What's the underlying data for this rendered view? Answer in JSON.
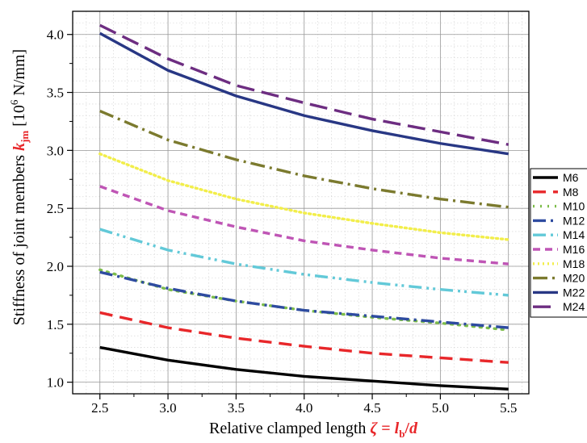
{
  "chart_data": {
    "type": "line",
    "xlabel": {
      "main": "Relative clamped length ",
      "symbol": "ζ",
      "equals": " = ",
      "l": "l",
      "l_sub": "b",
      "slash": "/",
      "d": "d"
    },
    "ylabel": {
      "main": "Stiffness of joint members ",
      "k": "k",
      "k_sub": "jm",
      "unit_open": " [10",
      "unit_exp": "6",
      "unit_close": " N/mm]"
    },
    "xlim": [
      2.3,
      5.65
    ],
    "ylim": [
      0.9,
      4.2
    ],
    "xticks": [
      "2.5",
      "3.0",
      "3.5",
      "4.0",
      "4.5",
      "5.0",
      "5.5"
    ],
    "yticks": [
      "1.0",
      "1.5",
      "2.0",
      "2.5",
      "3.0",
      "3.5",
      "4.0"
    ],
    "grid": true,
    "legend_position": "right",
    "x": [
      2.5,
      3.0,
      3.5,
      4.0,
      4.5,
      5.0,
      5.5
    ],
    "series": [
      {
        "name": "M6",
        "color": "#000000",
        "dash": "solid",
        "values": [
          1.3,
          1.19,
          1.11,
          1.05,
          1.01,
          0.97,
          0.94
        ]
      },
      {
        "name": "M8",
        "color": "#e8272a",
        "dash": "dash",
        "values": [
          1.6,
          1.47,
          1.38,
          1.31,
          1.25,
          1.21,
          1.17
        ]
      },
      {
        "name": "M10",
        "color": "#7dbd4a",
        "dash": "dot",
        "values": [
          1.97,
          1.8,
          1.7,
          1.62,
          1.56,
          1.51,
          1.45
        ]
      },
      {
        "name": "M12",
        "color": "#2e4ba0",
        "dash": "dashdot",
        "values": [
          1.95,
          1.81,
          1.7,
          1.62,
          1.57,
          1.52,
          1.47
        ]
      },
      {
        "name": "M14",
        "color": "#62c9d8",
        "dash": "dashdotdot",
        "values": [
          2.32,
          2.14,
          2.02,
          1.93,
          1.86,
          1.8,
          1.75
        ]
      },
      {
        "name": "M16",
        "color": "#bf55b5",
        "dash": "shortdash",
        "values": [
          2.69,
          2.48,
          2.34,
          2.22,
          2.14,
          2.07,
          2.02
        ]
      },
      {
        "name": "M18",
        "color": "#f2ee4a",
        "dash": "shortdot",
        "values": [
          2.97,
          2.74,
          2.58,
          2.46,
          2.37,
          2.29,
          2.23
        ]
      },
      {
        "name": "M20",
        "color": "#7b7a2e",
        "dash": "longdashdot",
        "values": [
          3.34,
          3.09,
          2.92,
          2.78,
          2.67,
          2.58,
          2.51
        ]
      },
      {
        "name": "M22",
        "color": "#283784",
        "dash": "solid",
        "values": [
          4.01,
          3.69,
          3.47,
          3.3,
          3.17,
          3.06,
          2.97
        ]
      },
      {
        "name": "M24",
        "color": "#6d2d81",
        "dash": "longdash",
        "values": [
          4.08,
          3.79,
          3.56,
          3.41,
          3.27,
          3.16,
          3.05
        ]
      }
    ]
  }
}
